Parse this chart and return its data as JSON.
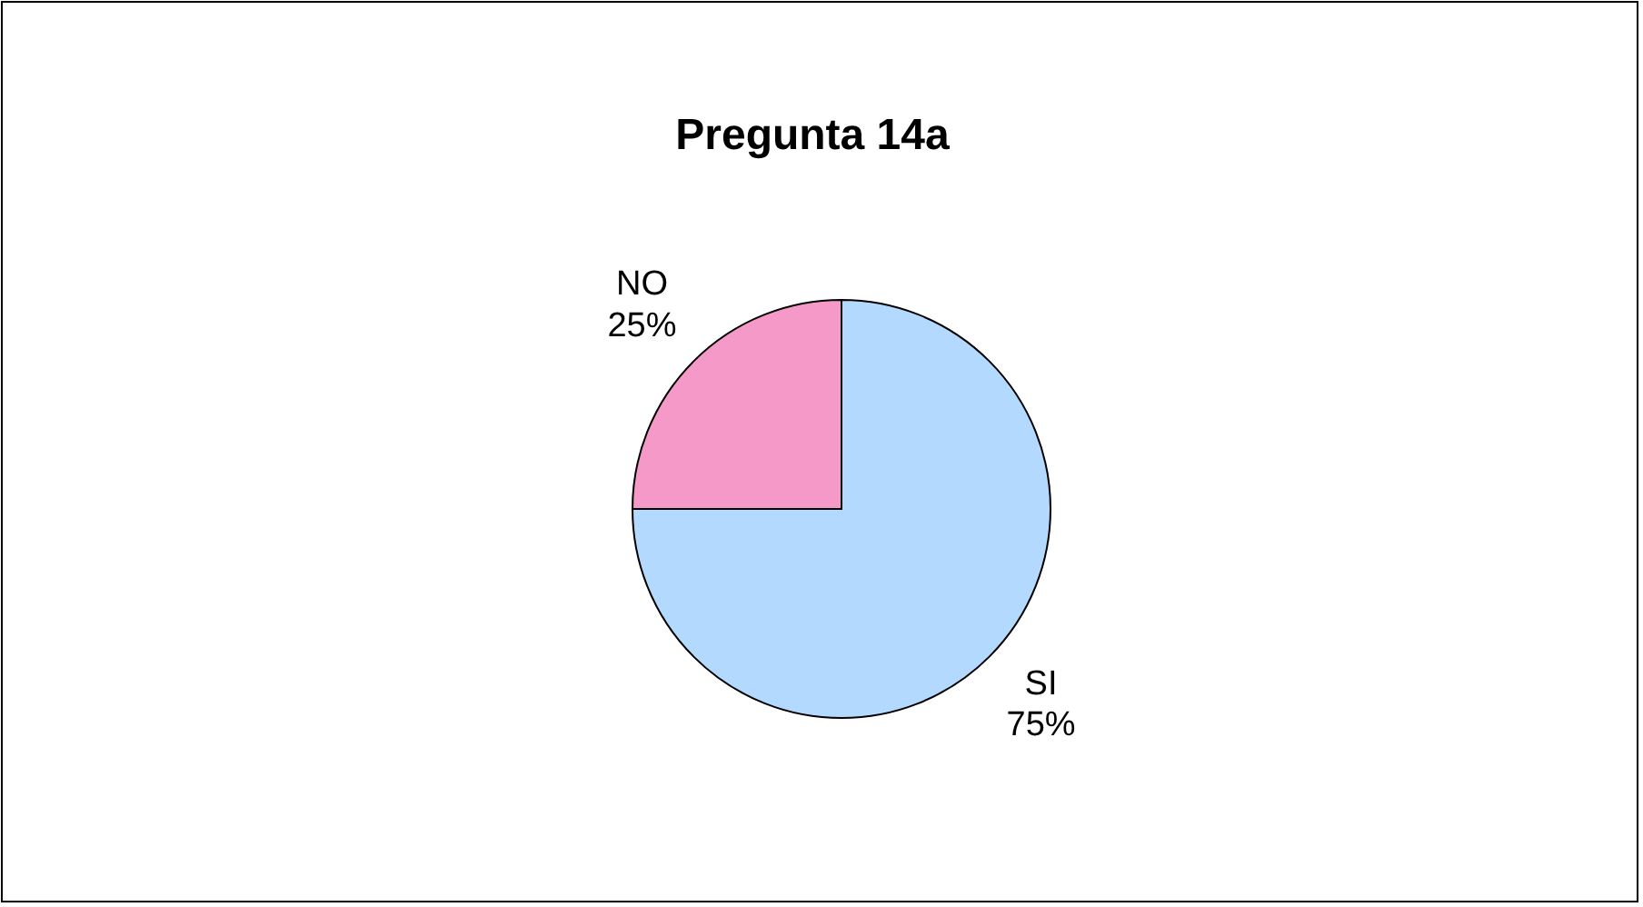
{
  "chart_data": {
    "type": "pie",
    "title": "Pregunta 14a",
    "categories": [
      "SI",
      "NO"
    ],
    "values": [
      75,
      25
    ],
    "value_labels": [
      "75%",
      "25%"
    ],
    "colors": [
      "#b3d9ff",
      "#f59ac8"
    ]
  }
}
